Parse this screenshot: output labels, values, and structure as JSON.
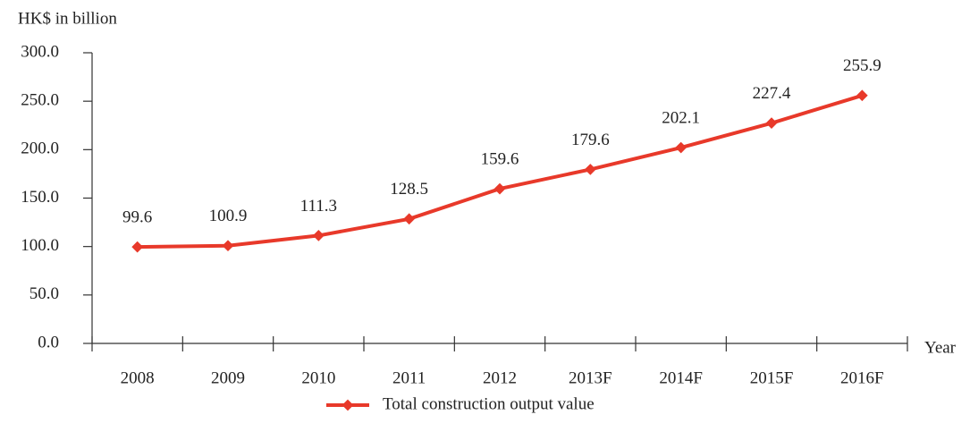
{
  "chart_data": {
    "type": "line",
    "y_axis_label": "HK$ in billion",
    "x_axis_label": "Year",
    "categories": [
      "2008",
      "2009",
      "2010",
      "2011",
      "2012",
      "2013F",
      "2014F",
      "2015F",
      "2016F"
    ],
    "series": [
      {
        "name": "Total construction output value",
        "color": "#e8392a",
        "values": [
          99.6,
          100.9,
          111.3,
          128.5,
          159.6,
          179.6,
          202.1,
          227.4,
          255.9
        ]
      }
    ],
    "ylim": [
      0,
      300
    ],
    "yticks": [
      {
        "value": 0,
        "label": "0.0"
      },
      {
        "value": 50,
        "label": "50.0"
      },
      {
        "value": 100,
        "label": "100.0"
      },
      {
        "value": 150,
        "label": "150.0"
      },
      {
        "value": 200,
        "label": "200.0"
      },
      {
        "value": 250,
        "label": "250.0"
      },
      {
        "value": 300,
        "label": "300.0"
      }
    ],
    "legend": "bottom"
  }
}
